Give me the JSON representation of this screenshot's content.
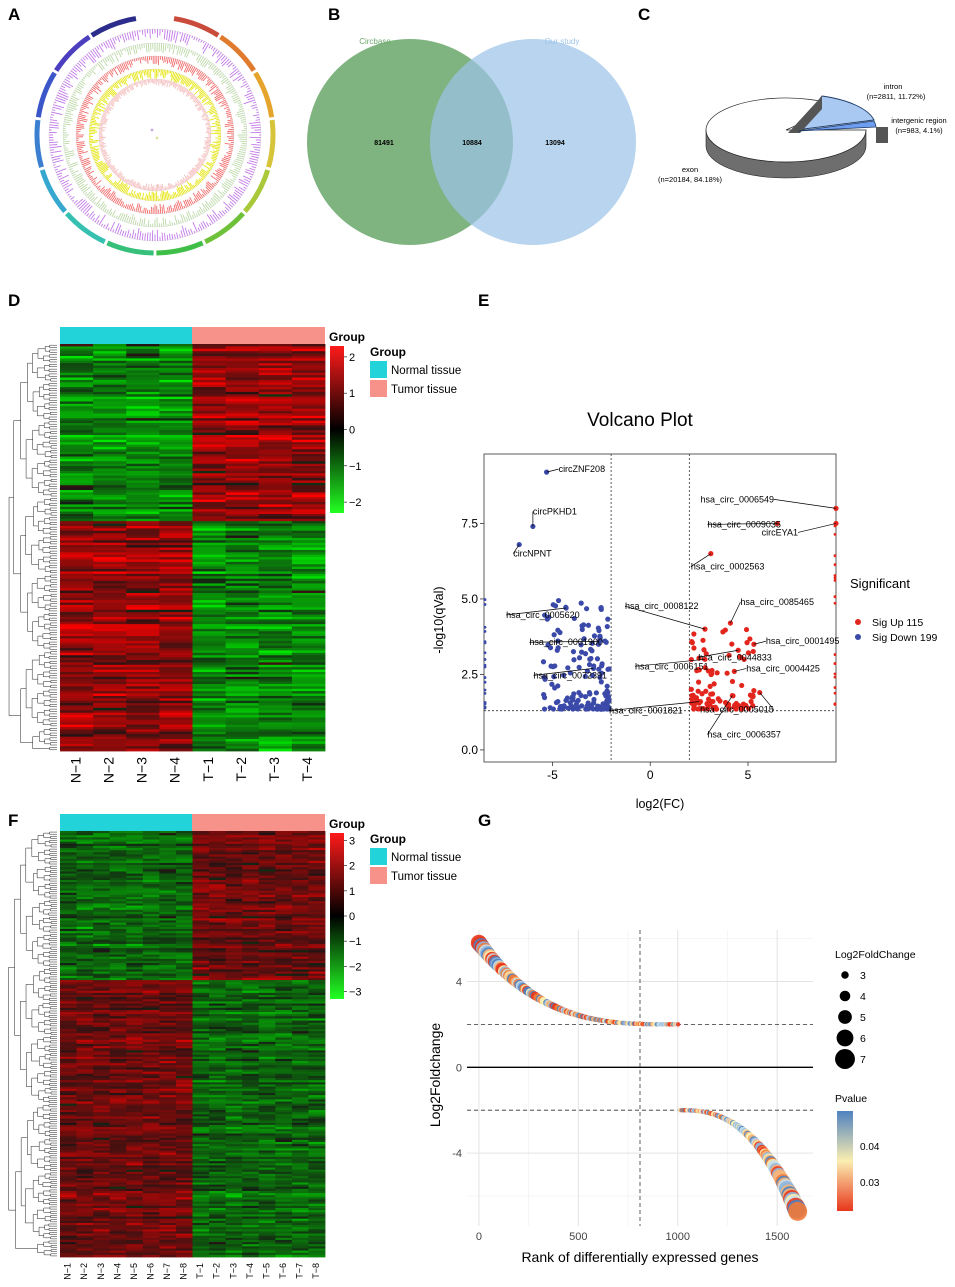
{
  "panels": {
    "A": "A",
    "B": "B",
    "C": "C",
    "D": "D",
    "E": "E",
    "F": "F",
    "G": "G"
  },
  "colors": {
    "normal": "#22d3d9",
    "tumor": "#f6928a",
    "venn_left": "#6da86d",
    "venn_right": "#9cc4e8",
    "sig_up": "#e3261d",
    "sig_down": "#3b4aa8"
  },
  "chart_data": [
    {
      "id": "A",
      "type": "other",
      "description_label": "circos"
    },
    {
      "id": "B",
      "type": "venn",
      "sets": [
        "Circbase",
        "Our study"
      ],
      "values": {
        "only_left": 81491,
        "overlap": 10884,
        "only_right": 13094
      }
    },
    {
      "id": "C",
      "type": "pie",
      "slices": [
        {
          "label": "exon",
          "detail": "(n=20184, 84.18%)",
          "value": 84.18
        },
        {
          "label": "intron",
          "detail": "(n=2811, 11.72%)",
          "value": 11.72
        },
        {
          "label": "intergenic region",
          "detail": "(n=983, 4.1%)",
          "value": 4.1
        }
      ]
    },
    {
      "id": "D",
      "type": "heatmap",
      "columns": [
        "N−1",
        "N−2",
        "N−3",
        "N−4",
        "T−1",
        "T−2",
        "T−3",
        "T−4"
      ],
      "legend_title": "Group",
      "groups": [
        "Normal tissue",
        "Tumor tissue"
      ],
      "scale_title": "Group",
      "scale_ticks": [
        "2",
        "1",
        "0",
        "−1",
        "−2"
      ],
      "scale_range": [
        -2.3,
        2.3
      ]
    },
    {
      "id": "E",
      "type": "scatter",
      "title": "Volcano Plot",
      "xlabel": "log2(FC)",
      "ylabel": "-log10(qVal)",
      "xlim": [
        -8.5,
        9.5
      ],
      "ylim": [
        -0.4,
        9.8
      ],
      "xticks": [
        "-5",
        "0",
        "5"
      ],
      "yticks": [
        "0.0",
        "2.5",
        "5.0",
        "7.5"
      ],
      "xtick_values": [
        -5,
        0,
        5
      ],
      "ytick_values": [
        0,
        2.5,
        5,
        7.5
      ],
      "thresholds": {
        "x": [
          -2,
          2
        ],
        "y": 1.3
      },
      "legend_title": "Significant",
      "legend": [
        "Sig Up 115",
        "Sig Down 199"
      ],
      "labels": [
        {
          "text": "circZNF208",
          "x": -5.3,
          "y": 9.2
        },
        {
          "text": "circPKHD1",
          "x": -6.0,
          "y": 7.4
        },
        {
          "text": "circNPNT",
          "x": -6.7,
          "y": 6.8
        },
        {
          "text": "hsa_circ_0005620",
          "x": -4.3,
          "y": 4.7
        },
        {
          "text": "hsa_circ_0001900",
          "x": -2.6,
          "y": 3.6
        },
        {
          "text": "hsa_circ_0072391",
          "x": -2.9,
          "y": 2.7
        },
        {
          "text": "hsa_circ_0006549",
          "x": 9.5,
          "y": 8.0
        },
        {
          "text": "hsa_circ_0009035",
          "x": 6.5,
          "y": 7.5
        },
        {
          "text": "circEYA1",
          "x": 9.5,
          "y": 7.5
        },
        {
          "text": "hsa_circ_0002563",
          "x": 3.1,
          "y": 6.5
        },
        {
          "text": "hsa_circ_0008122",
          "x": 2.8,
          "y": 4.0
        },
        {
          "text": "hsa_circ_0085465",
          "x": 4.1,
          "y": 4.2
        },
        {
          "text": "hsa_circ_0001495",
          "x": 5.3,
          "y": 3.5
        },
        {
          "text": "hsa_circ_0044833",
          "x": 4.5,
          "y": 3.3
        },
        {
          "text": "hsa_circ_0006151",
          "x": 2.8,
          "y": 3.0
        },
        {
          "text": "hsa_circ_0004425",
          "x": 4.3,
          "y": 2.6
        },
        {
          "text": "hsa_circ_0001821",
          "x": 2.5,
          "y": 1.6
        },
        {
          "text": "hsa_circ_0005015",
          "x": 5.6,
          "y": 1.9
        },
        {
          "text": "hsa_circ_0006357",
          "x": 4.2,
          "y": 1.8
        }
      ]
    },
    {
      "id": "F",
      "type": "heatmap",
      "columns": [
        "N−1",
        "N−2",
        "N−3",
        "N−4",
        "N−5",
        "N−6",
        "N−7",
        "N−8",
        "T−1",
        "T−2",
        "T−3",
        "T−4",
        "T−5",
        "T−6",
        "T−7",
        "T−8"
      ],
      "legend_title": "Group",
      "groups": [
        "Normal tissue",
        "Tumor tissue"
      ],
      "scale_title": "Group",
      "scale_ticks": [
        "3",
        "2",
        "1",
        "0",
        "−1",
        "−2",
        "−3"
      ],
      "scale_range": [
        -3.3,
        3.3
      ]
    },
    {
      "id": "G",
      "type": "scatter",
      "xlabel": "Rank of differentially expressed genes",
      "ylabel": "Log2Foldchange",
      "xlim": [
        -60,
        1680
      ],
      "ylim": [
        -7.4,
        6.4
      ],
      "xticks": [
        "0",
        "500",
        "1000",
        "1500"
      ],
      "yticks": [
        "4",
        "0",
        "-4"
      ],
      "xtick_values": [
        0,
        500,
        1000,
        1500
      ],
      "ytick_values": [
        4,
        0,
        -4
      ],
      "vline_x": 810,
      "hlines_y": [
        2,
        -2
      ],
      "n_up": 1008,
      "n_down": 600,
      "size_legend_title": "Log2FoldChange",
      "size_legend": [
        "3",
        "4",
        "5",
        "6",
        "7"
      ],
      "color_legend_title": "Pvalue",
      "color_legend_ticks": [
        "0.04",
        "0.03"
      ]
    }
  ]
}
